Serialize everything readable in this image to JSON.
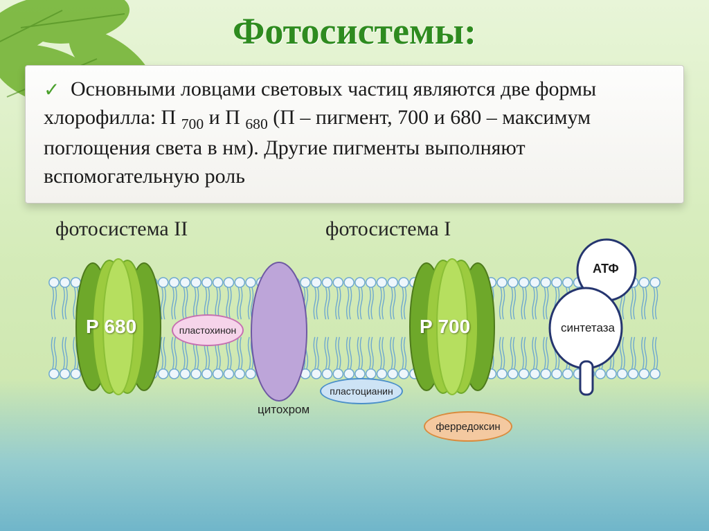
{
  "title": "Фотосистемы:",
  "paragraph": {
    "lead": "Основными ловцами световых частиц являются две формы хлорофилла: П",
    "sub1": "700",
    "mid": " и П",
    "sub2": "680",
    "tail": " (П – пигмент, 700 и 680 – максимум поглощения света в нм). Другие пигменты выполняют вспомогательную роль"
  },
  "headings": {
    "ps2": "фотосистема II",
    "ps1": "фотосистема I"
  },
  "labels": {
    "p680": "Р 680",
    "p700": "Р 700",
    "plastoquinone": "пластохинон",
    "cytochrome": "цитохром",
    "plastocyanin": "пластоцианин",
    "ferredoxin": "ферредоксин",
    "atp": "АТФ",
    "synthase": "синтетаза"
  },
  "colors": {
    "title": "#2e8b1f",
    "ps_green_outer": "#6ea82a",
    "ps_green_mid": "#9ccb3f",
    "ps_green_inner": "#b6df5f",
    "plastoquinone_fill": "#f6d4ea",
    "plastoquinone_stroke": "#c66fb0",
    "cytochrome_fill": "#bda5d9",
    "cytochrome_stroke": "#6e59a3",
    "plastocyanin_fill": "#cde3f5",
    "plastocyanin_stroke": "#4a8fc9",
    "ferredoxin_fill": "#f4c9a0",
    "ferredoxin_stroke": "#d98b3d",
    "atp_fill": "#ffffff",
    "atp_stroke": "#25356f",
    "lipid_head": "#eef6fb",
    "lipid_head_stroke": "#6ea8cf",
    "lipid_tail": "#6ea8cf"
  },
  "diagram": {
    "lipid_count": 56,
    "lipid_head_r": 7,
    "membrane_height": 130
  },
  "fontsize": {
    "title": 54,
    "paragraph": 30,
    "heading": 30,
    "protein_label": 28,
    "small_pill": 14,
    "below": 17
  }
}
